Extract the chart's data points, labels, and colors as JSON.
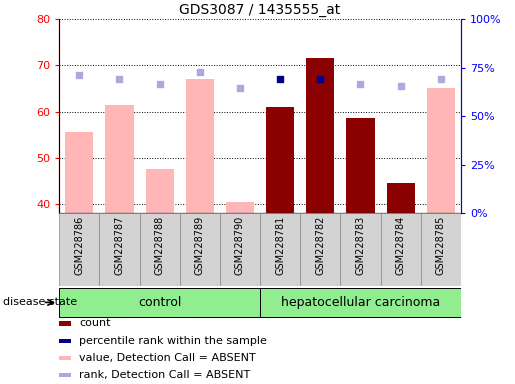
{
  "title": "GDS3087 / 1435555_at",
  "samples": [
    "GSM228786",
    "GSM228787",
    "GSM228788",
    "GSM228789",
    "GSM228790",
    "GSM228781",
    "GSM228782",
    "GSM228783",
    "GSM228784",
    "GSM228785"
  ],
  "bar_values": [
    55.5,
    61.5,
    47.5,
    67.0,
    40.5,
    61.0,
    71.5,
    58.5,
    44.5,
    65.0
  ],
  "bar_absent": [
    true,
    true,
    true,
    true,
    true,
    false,
    false,
    false,
    false,
    true
  ],
  "rank_values": [
    68.0,
    67.0,
    66.0,
    68.5,
    65.0,
    67.0,
    67.0,
    66.0,
    65.5,
    67.0
  ],
  "rank_absent": [
    true,
    true,
    true,
    true,
    true,
    false,
    false,
    true,
    true,
    true
  ],
  "ylim_left": [
    38,
    80
  ],
  "ylim_right": [
    0,
    100
  ],
  "yticks_left": [
    40,
    50,
    60,
    70,
    80
  ],
  "yticks_right": [
    0,
    25,
    50,
    75,
    100
  ],
  "ytick_labels_right": [
    "0%",
    "25%",
    "50%",
    "75%",
    "100%"
  ],
  "bar_color_present": "#8B0000",
  "bar_color_absent": "#FFB6B6",
  "rank_color_present": "#00008B",
  "rank_color_absent": "#AAAADD",
  "control_color": "#90EE90",
  "cancer_color": "#90EE90",
  "group_label_control": "control",
  "group_label_cancer": "hepatocellular carcinoma",
  "legend_items": [
    {
      "color": "#8B0000",
      "label": "count"
    },
    {
      "color": "#00008B",
      "label": "percentile rank within the sample"
    },
    {
      "color": "#FFB6B6",
      "label": "value, Detection Call = ABSENT"
    },
    {
      "color": "#AAAADD",
      "label": "rank, Detection Call = ABSENT"
    }
  ],
  "disease_state_label": "disease state",
  "xtick_bg_color": "#D3D3D3",
  "xtick_border_color": "#888888"
}
